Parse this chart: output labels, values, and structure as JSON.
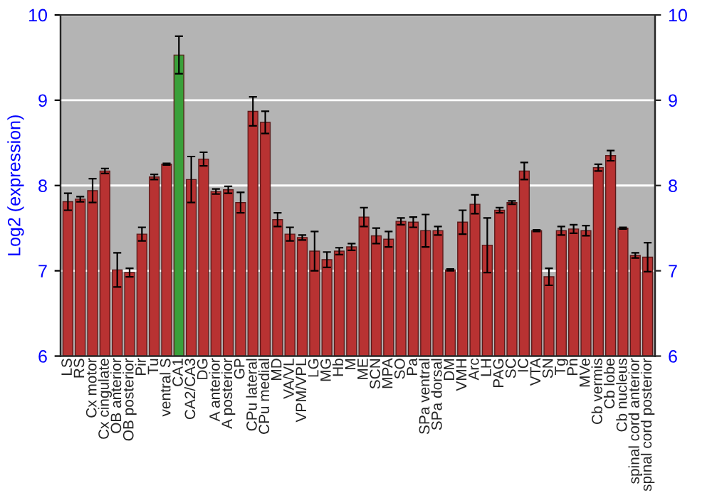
{
  "chart_data": {
    "type": "bar",
    "ylabel": "Log2 (expression)",
    "categories": [
      "LS",
      "RS",
      "Cx motor",
      "Cx cingulate",
      "OB anterior",
      "OB posterior",
      "Pir",
      "Tu",
      "ventral S",
      "CA1",
      "CA2/CA3",
      "DG",
      "A anterior",
      "A posterior",
      "GP",
      "CPu lateral",
      "CPu medial",
      "MD",
      "VA/VL",
      "VPM/VPL",
      "LG",
      "MG",
      "Hb",
      "M",
      "ME",
      "SCN",
      "MPA",
      "SO",
      "Pa",
      "SPa ventral",
      "SPa dorsal",
      "DM",
      "VMH",
      "Arc",
      "LH",
      "PAG",
      "SC",
      "IC",
      "VTA",
      "SN",
      "Tg",
      "Pn",
      "MVe",
      "Cb vermis",
      "Cb lobe",
      "Cb nucleus",
      "spinal cord anterior",
      "spinal cord posterior"
    ],
    "values": [
      7.81,
      7.84,
      7.94,
      8.17,
      7.01,
      6.98,
      7.43,
      8.1,
      8.25,
      9.53,
      8.07,
      8.31,
      7.93,
      7.95,
      7.8,
      8.87,
      8.74,
      7.6,
      7.43,
      7.39,
      7.23,
      7.13,
      7.23,
      7.28,
      7.63,
      7.41,
      7.37,
      7.58,
      7.57,
      7.47,
      7.47,
      7.01,
      7.57,
      7.78,
      7.3,
      7.71,
      7.8,
      8.17,
      7.47,
      6.93,
      7.47,
      7.49,
      7.47,
      8.21,
      8.35,
      7.5,
      7.18,
      7.16
    ],
    "errors": [
      0.1,
      0.03,
      0.14,
      0.03,
      0.2,
      0.05,
      0.08,
      0.03,
      0.01,
      0.22,
      0.27,
      0.08,
      0.03,
      0.04,
      0.12,
      0.17,
      0.13,
      0.08,
      0.08,
      0.03,
      0.23,
      0.09,
      0.04,
      0.04,
      0.11,
      0.09,
      0.09,
      0.04,
      0.06,
      0.19,
      0.05,
      0.01,
      0.14,
      0.11,
      0.32,
      0.03,
      0.02,
      0.1,
      0.01,
      0.1,
      0.05,
      0.05,
      0.06,
      0.04,
      0.06,
      0.01,
      0.03,
      0.17
    ],
    "colors": [
      "#b83232",
      "#b83232",
      "#b83232",
      "#b83232",
      "#b83232",
      "#b83232",
      "#b83232",
      "#b83232",
      "#b83232",
      "#3aa03a",
      "#b83232",
      "#b83232",
      "#b83232",
      "#b83232",
      "#b83232",
      "#b83232",
      "#b83232",
      "#b83232",
      "#b83232",
      "#b83232",
      "#b83232",
      "#b83232",
      "#b83232",
      "#b83232",
      "#b83232",
      "#b83232",
      "#b83232",
      "#b83232",
      "#b83232",
      "#b83232",
      "#b83232",
      "#b83232",
      "#b83232",
      "#b83232",
      "#b83232",
      "#b83232",
      "#b83232",
      "#b83232",
      "#b83232",
      "#b83232",
      "#b83232",
      "#b83232",
      "#b83232",
      "#b83232",
      "#b83232",
      "#b83232",
      "#b83232",
      "#b83232"
    ],
    "ylim": [
      6,
      10
    ],
    "yticks": [
      6,
      7,
      8,
      9,
      10
    ],
    "y2lim": [
      6,
      10
    ],
    "y2ticks": [
      6,
      7,
      8,
      9,
      10
    ],
    "grid": "y"
  }
}
